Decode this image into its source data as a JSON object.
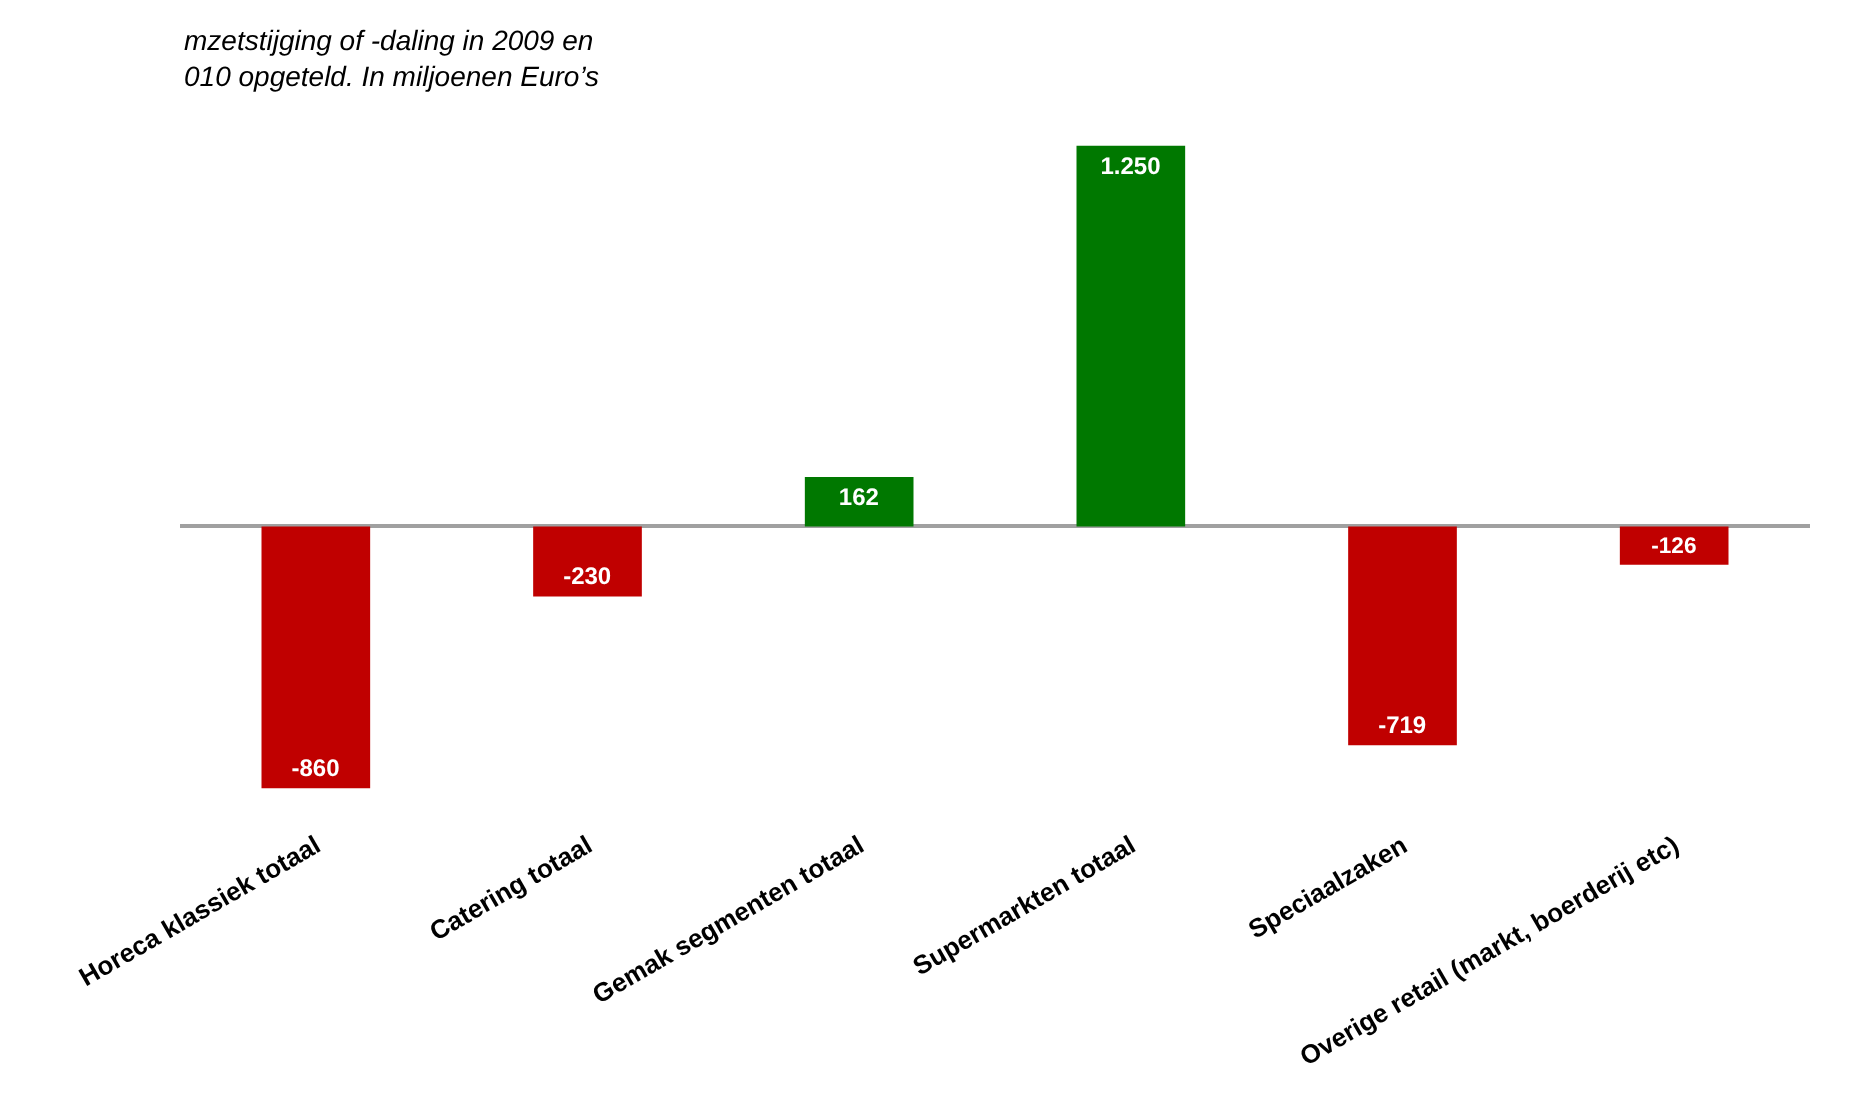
{
  "chart_data": {
    "type": "bar",
    "title": "mzetstijging of -daling in 2009 en\n010 opgeteld. In miljoenen Euro’s",
    "categories": [
      "Horeca klassiek totaal",
      "Catering totaal",
      "Gemak segmenten totaal",
      "Supermarkten totaal",
      "Speciaalzaken",
      "Overige retail (markt, boerderij etc)"
    ],
    "values": [
      -860,
      -230,
      162,
      1250,
      -719,
      -126
    ],
    "colors": [
      "#c00000",
      "#c00000",
      "#007800",
      "#007800",
      "#c00000",
      "#c00000"
    ],
    "value_labels": [
      "-860",
      "-230",
      "162",
      "1.250",
      "-719",
      "-126"
    ],
    "legend": false
  }
}
